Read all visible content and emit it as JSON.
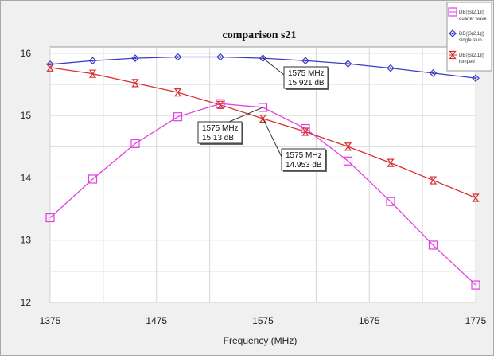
{
  "chart_data": {
    "type": "line",
    "title": "comparison s21",
    "xlabel": "Frequency (MHz)",
    "ylabel": "",
    "xlim": [
      1375,
      1775
    ],
    "ylim": [
      12,
      16.1
    ],
    "x_ticks": [
      1375,
      1475,
      1575,
      1675,
      1775
    ],
    "y_ticks": [
      12,
      13,
      14,
      15,
      16
    ],
    "grid": true,
    "legend_position": "top-right",
    "series": [
      {
        "name": "DB(|S(2,1)|) quarter wave",
        "color": "#e040e0",
        "marker": "square",
        "x": [
          1375,
          1415,
          1455,
          1495,
          1535,
          1575,
          1615,
          1655,
          1695,
          1735,
          1775
        ],
        "y": [
          13.36,
          13.98,
          14.55,
          14.98,
          15.19,
          15.13,
          14.79,
          14.27,
          13.62,
          12.92,
          12.28
        ]
      },
      {
        "name": "DB(|S(2,1)|) single stub",
        "color": "#3c3cc8",
        "marker": "diamond",
        "x": [
          1375,
          1415,
          1455,
          1495,
          1535,
          1575,
          1615,
          1655,
          1695,
          1735,
          1775
        ],
        "y": [
          15.82,
          15.88,
          15.92,
          15.94,
          15.94,
          15.92,
          15.88,
          15.83,
          15.76,
          15.68,
          15.6
        ]
      },
      {
        "name": "DB(|S(2,1)|) lumped",
        "color": "#d83030",
        "marker": "hourglass",
        "x": [
          1375,
          1415,
          1455,
          1495,
          1535,
          1575,
          1615,
          1655,
          1695,
          1735,
          1775
        ],
        "y": [
          15.77,
          15.67,
          15.52,
          15.37,
          15.17,
          14.95,
          14.74,
          14.5,
          14.24,
          13.96,
          13.68
        ]
      }
    ],
    "annotations": [
      {
        "series": 1,
        "x": 1575,
        "y": 15.921,
        "line1": "1575 MHz",
        "line2": "15.921 dB"
      },
      {
        "series": 0,
        "x": 1575,
        "y": 15.13,
        "line1": "1575 MHz",
        "line2": "15.13 dB"
      },
      {
        "series": 2,
        "x": 1575,
        "y": 14.953,
        "line1": "1575 MHz",
        "line2": "14.953 dB"
      }
    ],
    "legend": [
      {
        "line1": "DB(|S(2,1)|)",
        "line2": "quarter wave",
        "color": "#e040e0",
        "marker": "square"
      },
      {
        "line1": "DB(|S(2,1)|)",
        "line2": "single stub",
        "color": "#3c3cc8",
        "marker": "diamond"
      },
      {
        "line1": "DB(|S(2,1)|)",
        "line2": "lumped",
        "color": "#d83030",
        "marker": "hourglass"
      }
    ]
  }
}
